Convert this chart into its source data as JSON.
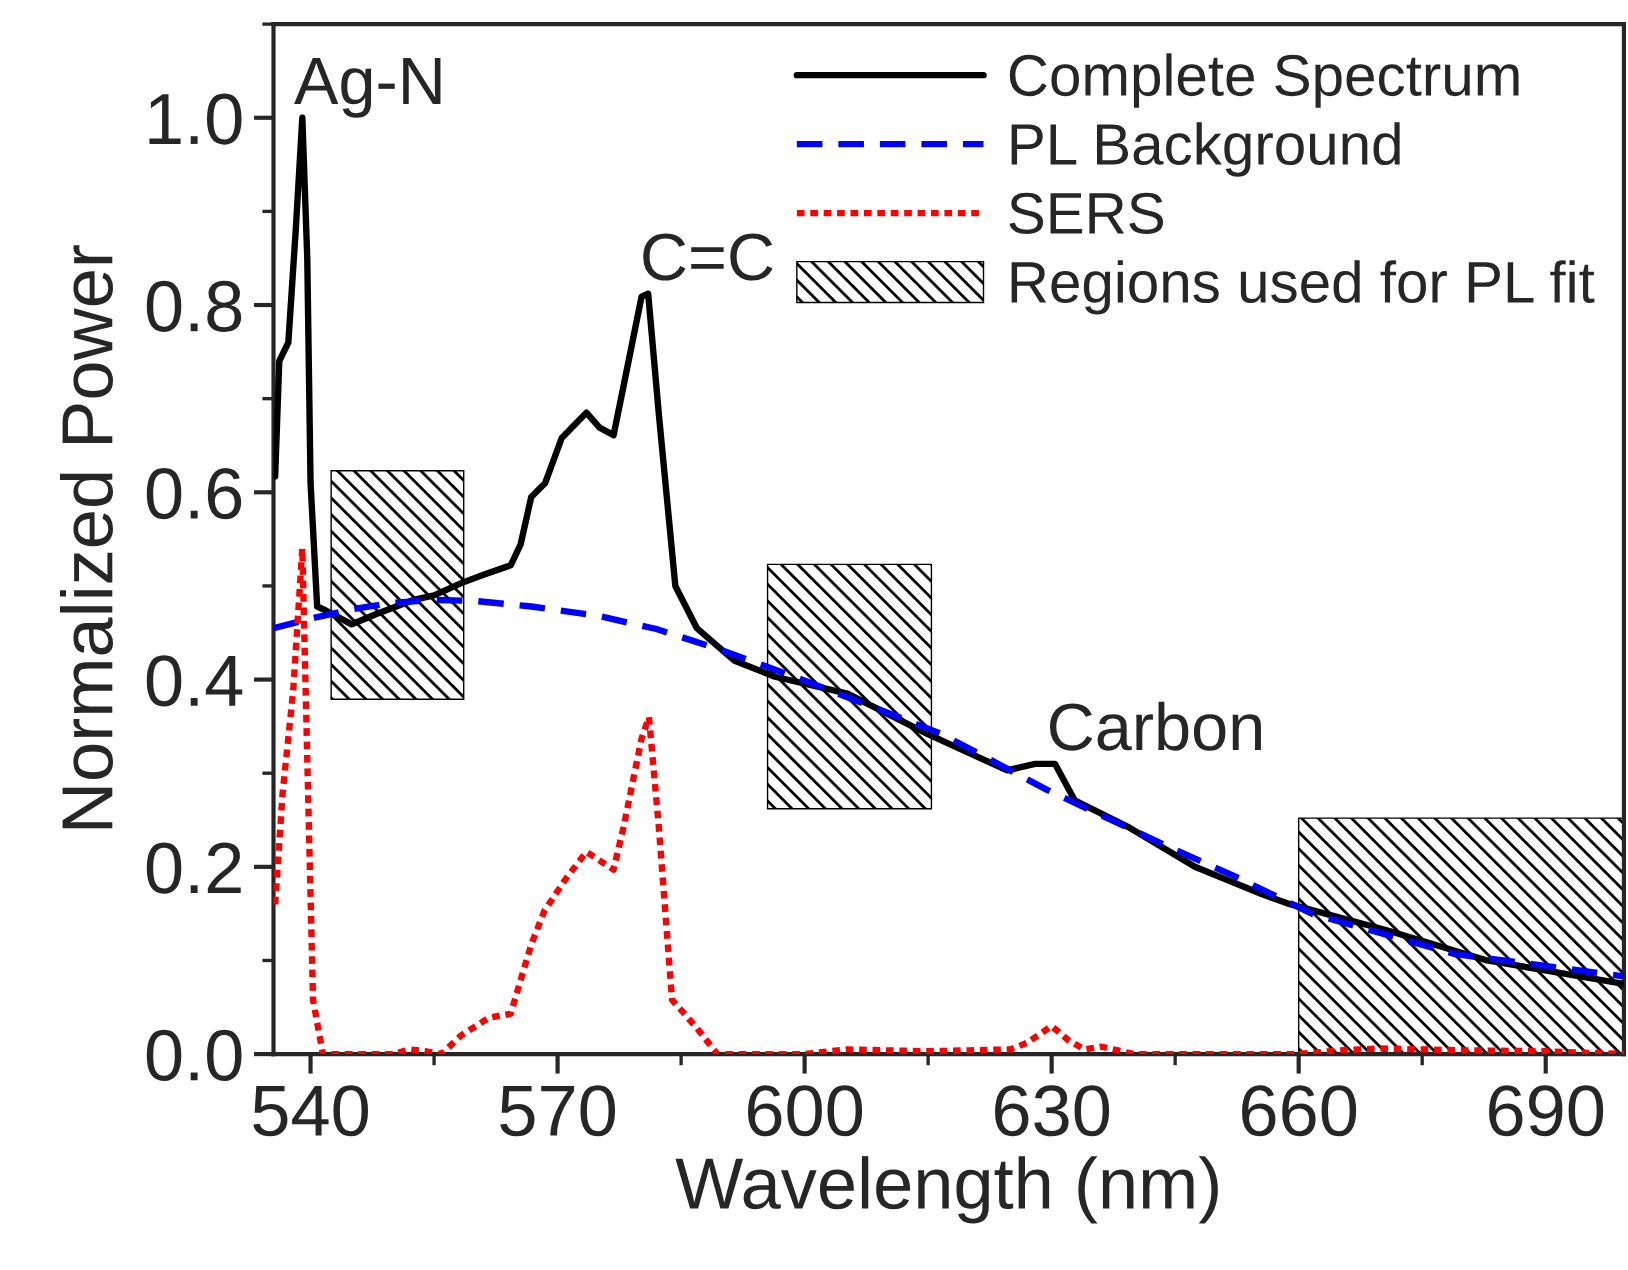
{
  "chart_data": {
    "type": "line",
    "xlabel": "Wavelength (nm)",
    "ylabel": "Normalized Power",
    "xlim": [
      535.5,
      699.5
    ],
    "ylim": [
      0,
      1.1
    ],
    "xticks": [
      540,
      570,
      600,
      630,
      660,
      690
    ],
    "yticks": [
      {
        "value": 0,
        "label": "0.0"
      },
      {
        "value": 0.2,
        "label": "0.2"
      },
      {
        "value": 0.4,
        "label": "0.4"
      },
      {
        "value": 0.6,
        "label": "0.6"
      },
      {
        "value": 0.8,
        "label": "0.8"
      },
      {
        "value": 1.0,
        "label": "1.0"
      }
    ],
    "legend": "top right",
    "series": [
      {
        "name": "Complete Spectrum",
        "color": "#000000",
        "line_style": "solid",
        "x": [
          535.7,
          536.2,
          537.3,
          538.2,
          539.0,
          539.6,
          540.0,
          540.8,
          541.8,
          545,
          548,
          552.5,
          555,
          558.3,
          561,
          564.3,
          565.5,
          566.8,
          568.5,
          570.5,
          573.5,
          575.1,
          576.8,
          578,
          580.2,
          581,
          582.3,
          584.3,
          586.9,
          591.5,
          596.4,
          605.2,
          614.9,
          624.6,
          628,
          630.4,
          632.8,
          639.2,
          647.4,
          655.5,
          658.6,
          670.8,
          682.9,
          699.5
        ],
        "values": [
          0.617,
          0.74,
          0.76,
          0.88,
          1.0,
          0.85,
          0.61,
          0.478,
          0.474,
          0.459,
          0.47,
          0.485,
          0.49,
          0.503,
          0.512,
          0.522,
          0.544,
          0.595,
          0.61,
          0.658,
          0.685,
          0.669,
          0.661,
          0.713,
          0.809,
          0.812,
          0.683,
          0.5,
          0.455,
          0.42,
          0.403,
          0.385,
          0.342,
          0.303,
          0.31,
          0.31,
          0.271,
          0.243,
          0.2,
          0.171,
          0.161,
          0.132,
          0.1,
          0.075
        ]
      },
      {
        "name": "PL Background",
        "color": "#0000ff",
        "line_style": "dashed",
        "x": [
          535.5,
          540,
          545,
          550,
          555,
          560,
          566.8,
          575,
          582,
          589.4,
          598.8,
          607,
          616.6,
          629.5,
          643.3,
          652.2,
          661.6,
          678.9,
          699.5
        ],
        "values": [
          0.455,
          0.465,
          0.475,
          0.482,
          0.485,
          0.484,
          0.478,
          0.468,
          0.454,
          0.433,
          0.403,
          0.375,
          0.342,
          0.282,
          0.225,
          0.19,
          0.15,
          0.107,
          0.083
        ]
      },
      {
        "name": "SERS",
        "color": "#ff0000",
        "line_style": "dotted",
        "x": [
          535.7,
          536.6,
          537.9,
          539,
          539.6,
          540.3,
          541.5,
          550,
          552,
          554,
          555.9,
          558.3,
          561.7,
          564.3,
          566.8,
          568.4,
          570.9,
          573.5,
          576.8,
          578,
          580.2,
          581.1,
          582.3,
          583.9,
          586.9,
          589.4,
          600,
          605,
          610,
          615,
          620,
          625,
          627,
          630,
          632,
          634,
          636,
          640,
          660,
          665,
          670,
          675,
          680,
          690,
          699.5
        ],
        "values": [
          0.16,
          0.278,
          0.389,
          0.54,
          0.316,
          0.058,
          0,
          0,
          0.005,
          0.003,
          0,
          0.02,
          0.039,
          0.043,
          0.117,
          0.153,
          0.186,
          0.216,
          0.197,
          0.242,
          0.337,
          0.36,
          0.242,
          0.058,
          0.028,
          0,
          0,
          0.005,
          0.004,
          0.003,
          0.004,
          0.005,
          0.012,
          0.03,
          0.015,
          0.005,
          0.008,
          0,
          0,
          0.004,
          0.006,
          0.005,
          0.004,
          0.003,
          0
        ]
      }
    ],
    "bands": [
      {
        "axis": "x",
        "from": 542.5,
        "to": 558.6,
        "label": "Regions used for PL fit",
        "color": "#000000"
      },
      {
        "axis": "x",
        "from": 595.5,
        "to": 615.4,
        "color": "#000000"
      },
      {
        "axis": "x",
        "from": 660,
        "to": 699.5,
        "color": "#000000"
      }
    ],
    "annotations": [
      {
        "text": "Ag-N",
        "x": 539.0,
        "y": 1.0
      },
      {
        "text": "C=C",
        "x": 581,
        "y": 0.812
      },
      {
        "text": "Carbon",
        "x": 630.4,
        "y": 0.31
      }
    ]
  }
}
